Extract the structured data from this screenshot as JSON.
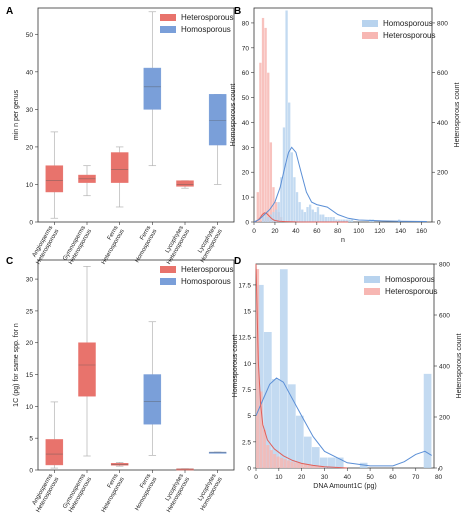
{
  "figure": {
    "panels": [
      {
        "letter": "A"
      },
      {
        "letter": "B"
      },
      {
        "letter": "C"
      },
      {
        "letter": "D"
      }
    ]
  },
  "colors": {
    "heterosporous": "#e8736c",
    "homosporous": "#7a9fd9",
    "hetero_hist": "#f7b7b3",
    "homo_hist": "#b8d3ee",
    "hetero_line": "#e0605a",
    "homo_line": "#5b8fd6",
    "whisker": "#b3b3b3",
    "median": "#555555"
  },
  "chart_data": [
    {
      "id": "A",
      "type": "box",
      "ylabel": "min n per genus",
      "ylim": [
        0,
        57
      ],
      "yticks": [
        0,
        10,
        20,
        30,
        40,
        50
      ],
      "legend": [
        "Heterosporous",
        "Homosporous"
      ],
      "legend_position": "top-right",
      "categories": [
        "Angiosperms Heterosporous",
        "Gymnosperms Heterosporous",
        "Ferns Heterosporous",
        "Ferns Homosporous",
        "Lycophytes Heterosporous",
        "Lycophytes Homosporous"
      ],
      "boxes": [
        {
          "group": "Angiosperms",
          "type": "Heterosporous",
          "lo": 1,
          "q1": 8,
          "med": 11,
          "q3": 15,
          "hi": 24
        },
        {
          "group": "Gymnosperms",
          "type": "Heterosporous",
          "lo": 7,
          "q1": 10.5,
          "med": 11.5,
          "q3": 12.5,
          "hi": 15
        },
        {
          "group": "Ferns",
          "type": "Heterosporous",
          "lo": 4,
          "q1": 10.5,
          "med": 14,
          "q3": 18.5,
          "hi": 20
        },
        {
          "group": "Ferns",
          "type": "Homosporous",
          "lo": 15,
          "q1": 30,
          "med": 36,
          "q3": 41,
          "hi": 56
        },
        {
          "group": "Lycophytes",
          "type": "Heterosporous",
          "lo": 9,
          "q1": 9.5,
          "med": 10,
          "q3": 11,
          "hi": 11
        },
        {
          "group": "Lycophytes",
          "type": "Homosporous",
          "lo": 10,
          "q1": 20.5,
          "med": 27,
          "q3": 34,
          "hi": 34
        }
      ]
    },
    {
      "id": "B",
      "type": "histogram",
      "xlabel": "n",
      "ylabel": "Homosporous count",
      "ylabel_right": "Heterosporous count",
      "xlim": [
        0,
        170
      ],
      "xticks": [
        0,
        20,
        40,
        60,
        80,
        100,
        120,
        140,
        160
      ],
      "ylim_left": [
        0,
        86
      ],
      "yticks_left": [
        0,
        10,
        20,
        30,
        40,
        50,
        60,
        70,
        80
      ],
      "ylim_right": [
        0,
        860
      ],
      "yticks_right": [
        0,
        200,
        400,
        600,
        800
      ],
      "legend": [
        "Homosporous",
        "Heterosporous"
      ],
      "legend_position": "top-right",
      "series": [
        {
          "name": "Heterosporous",
          "bin_width": 2.5,
          "bin_start": 2.5,
          "values": [
            120,
            640,
            820,
            780,
            600,
            320,
            140,
            80,
            40,
            20
          ]
        },
        {
          "name": "Homosporous",
          "bin_width": 2.5,
          "bin_start": 7.5,
          "values": [
            2,
            3,
            2,
            3,
            4,
            5,
            8,
            18,
            38,
            85,
            48,
            28,
            18,
            12,
            8,
            5,
            4,
            6,
            7,
            5,
            4,
            6,
            3,
            3,
            2,
            2,
            2,
            2,
            1,
            1,
            1,
            1,
            1,
            1,
            1,
            0,
            0,
            0,
            0,
            0,
            0,
            1,
            1,
            0,
            0,
            0,
            0,
            0,
            0,
            0,
            0,
            0,
            1
          ]
        }
      ],
      "kde": [
        {
          "name": "Heterosporous",
          "x": [
            0,
            4,
            6,
            8,
            10,
            12,
            14,
            16,
            18,
            20,
            24,
            30,
            40,
            60,
            90
          ],
          "y": [
            0,
            8,
            18,
            30,
            37,
            34,
            26,
            17,
            10,
            6,
            3,
            1.5,
            0.5,
            0.2,
            0
          ]
        },
        {
          "name": "Homosporous",
          "x": [
            0,
            5,
            10,
            15,
            20,
            25,
            30,
            33,
            36,
            40,
            45,
            50,
            55,
            60,
            70,
            80,
            90,
            100,
            120,
            140,
            165
          ],
          "y": [
            0,
            1,
            3,
            5,
            8,
            14,
            23,
            28,
            30,
            28,
            20,
            12,
            8,
            7,
            6,
            3,
            1.5,
            0.8,
            0.5,
            0.3,
            0.2
          ]
        }
      ]
    },
    {
      "id": "C",
      "type": "box",
      "ylabel": "1C (pg) for same spp. for n",
      "ylim": [
        0,
        33
      ],
      "yticks": [
        0,
        5,
        10,
        15,
        20,
        25,
        30
      ],
      "legend": [
        "Heterosporous",
        "Homosporous"
      ],
      "legend_position": "top-right",
      "categories": [
        "Angiosperms Heterosporous",
        "Gymnosperms Heterosporous",
        "Ferns Heterosporous",
        "Ferns Homosporous",
        "Lycophytes Heterosporous",
        "Lycophytes Homosporous"
      ],
      "boxes": [
        {
          "group": "Angiosperms",
          "type": "Heterosporous",
          "lo": 0.3,
          "q1": 0.8,
          "med": 2.5,
          "q3": 4.8,
          "hi": 10.7
        },
        {
          "group": "Gymnosperms",
          "type": "Heterosporous",
          "lo": 2.2,
          "q1": 11.6,
          "med": 16.5,
          "q3": 20,
          "hi": 32
        },
        {
          "group": "Ferns",
          "type": "Heterosporous",
          "lo": 0.6,
          "q1": 0.75,
          "med": 0.9,
          "q3": 1.05,
          "hi": 1.2
        },
        {
          "group": "Ferns",
          "type": "Homosporous",
          "lo": 2.3,
          "q1": 7.2,
          "med": 10.8,
          "q3": 15,
          "hi": 23.3
        },
        {
          "group": "Lycophytes",
          "type": "Heterosporous",
          "lo": 0.1,
          "q1": 0.12,
          "med": 0.15,
          "q3": 0.18,
          "hi": 0.2
        },
        {
          "group": "Lycophytes",
          "type": "Homosporous",
          "lo": 2.8,
          "q1": 2.8,
          "med": 2.8,
          "q3": 2.8,
          "hi": 2.8
        }
      ]
    },
    {
      "id": "D",
      "type": "histogram",
      "xlabel": "DNA Amount1C (pg)",
      "ylabel": "Homosporous count",
      "ylabel_right": "Heterosporous count",
      "xlim": [
        0,
        78
      ],
      "xticks": [
        0,
        10,
        20,
        30,
        40,
        50,
        60,
        70,
        80
      ],
      "ylim_left": [
        0,
        19.5
      ],
      "yticks_left": [
        0,
        2.5,
        5.0,
        7.5,
        10.0,
        12.5,
        15.0,
        17.5
      ],
      "ylim_right": [
        0,
        800
      ],
      "yticks_right": [
        0,
        200,
        400,
        600,
        800
      ],
      "legend": [
        "Homosporous",
        "Heterosporous"
      ],
      "legend_position": "top-right",
      "series": [
        {
          "name": "Homosporous",
          "bin_width": 3.5,
          "bin_start": 0,
          "values": [
            17.5,
            13,
            8.5,
            19,
            8,
            5,
            3,
            2,
            1,
            1,
            1,
            0,
            0,
            0.5,
            0,
            0,
            0,
            0,
            0,
            0,
            0,
            9
          ]
        },
        {
          "name": "Heterosporous",
          "bin_width": 1.5,
          "bin_start": 0,
          "values": [
            780,
            300,
            150,
            90,
            70,
            55,
            45,
            40,
            35,
            30,
            25,
            22,
            20,
            18,
            15,
            12,
            10,
            8,
            6,
            5
          ]
        }
      ],
      "kde": [
        {
          "name": "Homosporous",
          "x": [
            0,
            3,
            6,
            9,
            12,
            15,
            20,
            25,
            30,
            40,
            50,
            60,
            65,
            70,
            74,
            77
          ],
          "y": [
            5.0,
            6.5,
            8.0,
            8.6,
            8.2,
            7.0,
            5.0,
            3.0,
            1.6,
            0.5,
            0.2,
            0.2,
            0.6,
            1.3,
            1.6,
            1.2
          ]
        },
        {
          "name": "Heterosporous",
          "x": [
            0,
            1,
            2,
            3,
            5,
            8,
            12,
            16,
            20,
            25,
            30,
            40
          ],
          "y": [
            800,
            420,
            250,
            170,
            110,
            75,
            48,
            30,
            18,
            10,
            5,
            0
          ]
        }
      ]
    }
  ]
}
